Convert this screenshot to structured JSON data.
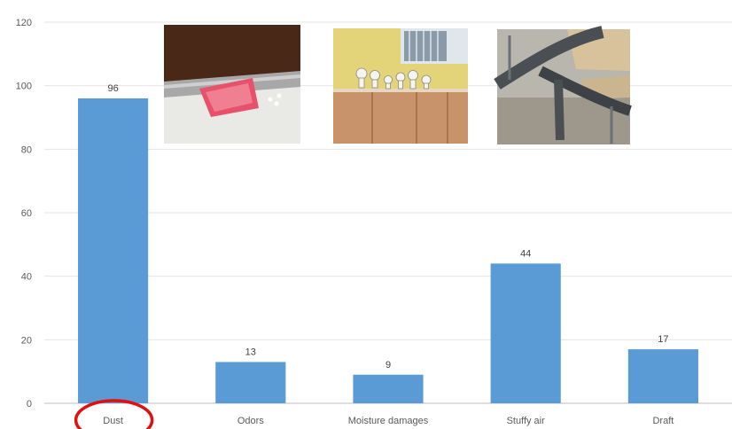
{
  "chart_data": {
    "type": "bar",
    "categories": [
      "Dust",
      "Odors",
      "Moisture damages",
      "Stuffy air",
      "Draft"
    ],
    "values": [
      96,
      13,
      9,
      44,
      17
    ],
    "ylim": [
      0,
      120
    ],
    "yticks": [
      0,
      20,
      40,
      60,
      80,
      100,
      120
    ],
    "grid": true,
    "bar_color": "#5b9bd5",
    "highlight": {
      "category": "Dust",
      "shape": "circle",
      "color": "#e01010"
    }
  },
  "photos": [
    {
      "name": "photo-wall-tape",
      "subject": "pink tape on a wall joint"
    },
    {
      "name": "photo-light-bulbs",
      "subject": "light bulbs on a cabinet top"
    },
    {
      "name": "photo-classroom-furniture",
      "subject": "metal tubular chairs and tables"
    }
  ]
}
